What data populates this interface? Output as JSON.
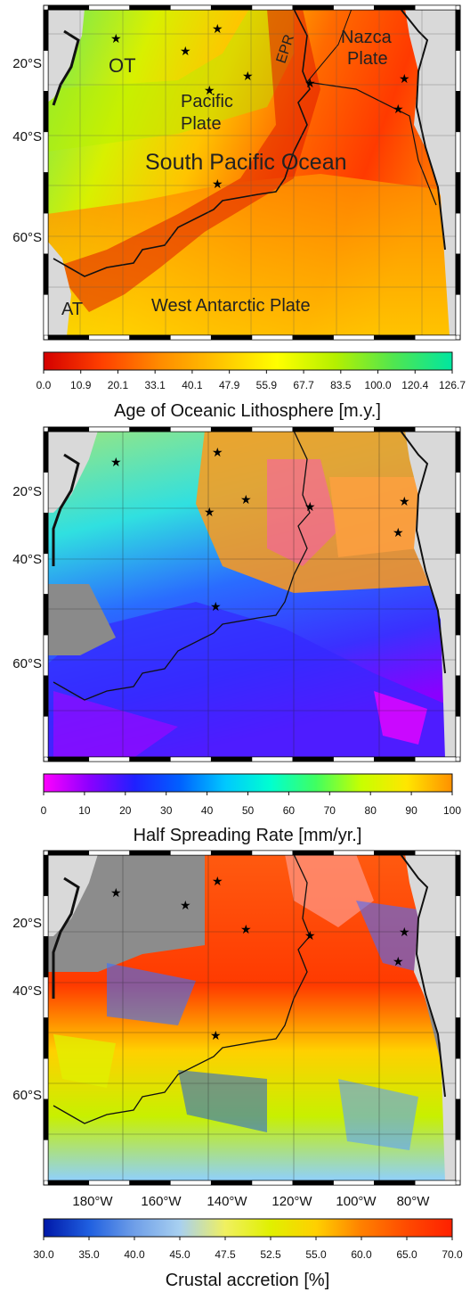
{
  "colors": {
    "land": "#d9d9d9",
    "land_dark": "#8a8a8a",
    "no_data": "#8c8c8c",
    "coast": "#111111",
    "ridge": "#111111",
    "star": "#000000"
  },
  "latitude_labels": [
    "20°S",
    "40°S",
    "60°S"
  ],
  "longitude_labels": [
    "180°W",
    "160°W",
    "140°W",
    "120°W",
    "100°W",
    "80°W"
  ],
  "panels": [
    {
      "id": "age",
      "map_labels": [
        {
          "text": "OT",
          "size": "large"
        },
        {
          "text": "EPR",
          "size": "medium",
          "rotate": true
        },
        {
          "text": "Nazca",
          "size": "large"
        },
        {
          "text": "Plate",
          "size": "large"
        },
        {
          "text": "Pacific",
          "size": "large"
        },
        {
          "text": "Plate",
          "size": "large"
        },
        {
          "text": "South Pacific Ocean",
          "size": "xlarge"
        },
        {
          "text": "West Antarctic Plate",
          "size": "large"
        },
        {
          "text": "AT",
          "size": "large"
        }
      ],
      "colorbar": {
        "title": "Age of Oceanic Lithosphere [m.y.]",
        "ticks": [
          "0.0",
          "10.9",
          "20.1",
          "33.1",
          "40.1",
          "47.9",
          "55.9",
          "67.7",
          "83.5",
          "100.0",
          "120.4",
          "126.7"
        ],
        "stops": [
          "#d40000",
          "#ff4000",
          "#ff8c00",
          "#ffc400",
          "#ffff00",
          "#b4f000",
          "#50e650",
          "#00e6a0"
        ],
        "tick_style": "small"
      }
    },
    {
      "id": "rate",
      "map_labels": [],
      "colorbar": {
        "title": "Half Spreading Rate [mm/yr.]",
        "ticks": [
          "0",
          "10",
          "20",
          "30",
          "40",
          "50",
          "60",
          "70",
          "80",
          "90",
          "100"
        ],
        "stops": [
          "#ff00ff",
          "#8c00ff",
          "#2020ff",
          "#0060ff",
          "#00c8ff",
          "#00ffd0",
          "#40ff60",
          "#c8ff00",
          "#ffe600",
          "#ff9000"
        ],
        "tick_style": "big"
      }
    },
    {
      "id": "accretion",
      "map_labels": [],
      "colorbar": {
        "title": "Crustal accretion [%]",
        "ticks": [
          "30.0",
          "35.0",
          "40.0",
          "45.0",
          "47.5",
          "52.5",
          "55.0",
          "60.0",
          "65.0",
          "70.0"
        ],
        "stops": [
          "#0018a8",
          "#1f5fe0",
          "#6f9fe8",
          "#a8d0f0",
          "#f0f060",
          "#e0f000",
          "#ffd000",
          "#ff8000",
          "#ff4a00",
          "#ff2000"
        ],
        "tick_style": "medium"
      }
    }
  ]
}
